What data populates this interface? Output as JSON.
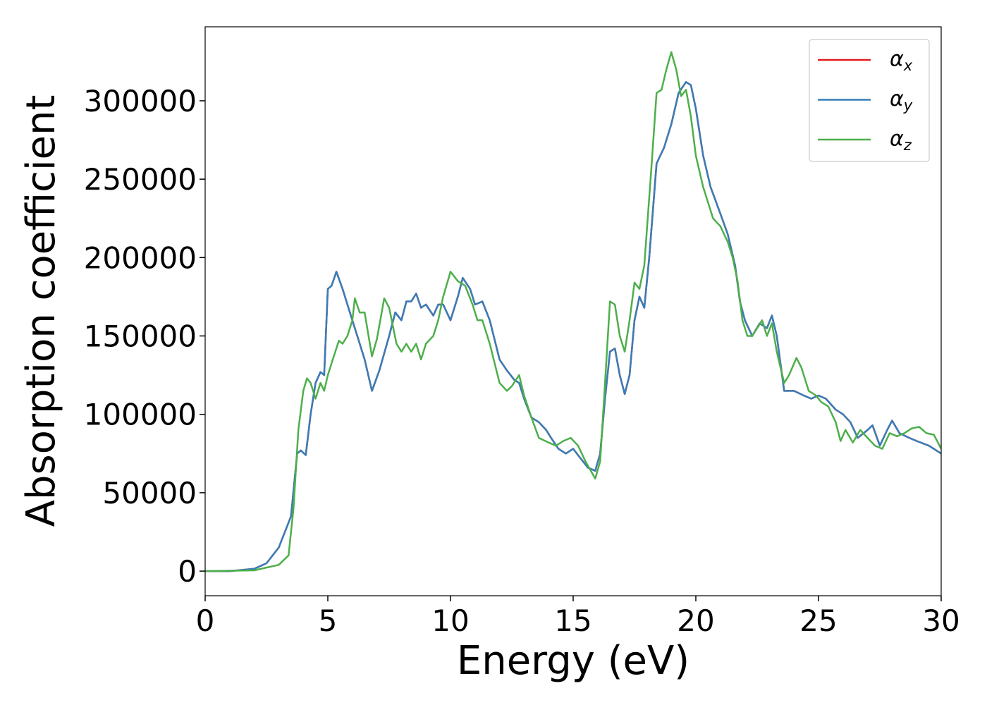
{
  "chart_data": {
    "type": "line",
    "xlabel": "Energy (eV)",
    "ylabel": "Absorption coefficient",
    "xlim": [
      0,
      30
    ],
    "ylim": [
      -15700,
      347200
    ],
    "xticks": [
      0,
      5,
      10,
      15,
      20,
      25,
      30
    ],
    "yticks": [
      0,
      50000,
      100000,
      150000,
      200000,
      250000,
      300000
    ],
    "grid": false,
    "legend": "upper right",
    "series": [
      {
        "name": "αx",
        "color": "#e41a1c",
        "x": [
          0,
          1,
          2,
          2.5,
          3,
          3.5,
          3.75,
          3.9,
          4.1,
          4.3,
          4.5,
          4.7,
          4.85,
          5,
          5.15,
          5.35,
          5.6,
          5.9,
          6.2,
          6.5,
          6.8,
          7.1,
          7.5,
          7.75,
          8,
          8.2,
          8.4,
          8.6,
          8.8,
          9,
          9.3,
          9.5,
          9.7,
          10,
          10.3,
          10.5,
          10.8,
          11,
          11.3,
          11.6,
          12,
          12.3,
          12.6,
          12.8,
          13,
          13.3,
          13.6,
          13.9,
          14.1,
          14.4,
          14.7,
          15,
          15.3,
          15.6,
          15.9,
          16.1,
          16.3,
          16.5,
          16.7,
          16.9,
          17.1,
          17.3,
          17.5,
          17.7,
          17.9,
          18.1,
          18.4,
          18.7,
          19,
          19.3,
          19.6,
          19.8,
          20,
          20.3,
          20.6,
          21,
          21.3,
          21.6,
          21.8,
          22,
          22.3,
          22.6,
          22.9,
          23.1,
          23.3,
          23.6,
          24,
          24.4,
          24.7,
          25,
          25.3,
          25.7,
          26,
          26.3,
          26.6,
          27,
          27.2,
          27.5,
          27.8,
          28,
          28.3,
          28.7,
          29,
          29.5,
          30
        ],
        "values": [
          0,
          0,
          1500,
          5000,
          15000,
          35000,
          75000,
          77000,
          74000,
          100000,
          120000,
          127000,
          125000,
          180000,
          182000,
          191000,
          180000,
          165000,
          150000,
          135000,
          115000,
          128000,
          150000,
          165000,
          160000,
          172000,
          172000,
          177000,
          168000,
          170000,
          163000,
          170000,
          170000,
          160000,
          175000,
          187000,
          180000,
          170000,
          172000,
          160000,
          135000,
          128000,
          122000,
          120000,
          110000,
          98000,
          95000,
          90000,
          85000,
          78000,
          75000,
          78000,
          72000,
          66000,
          64000,
          75000,
          110000,
          140000,
          142000,
          125000,
          113000,
          125000,
          160000,
          175000,
          168000,
          200000,
          260000,
          270000,
          285000,
          305000,
          312000,
          310000,
          295000,
          265000,
          245000,
          228000,
          215000,
          195000,
          172000,
          160000,
          150000,
          158000,
          155000,
          163000,
          150000,
          115000,
          115000,
          112000,
          110000,
          112000,
          110000,
          103000,
          100000,
          95000,
          85000,
          90000,
          93000,
          80000,
          90000,
          96000,
          88000,
          85000,
          83000,
          80000,
          75000
        ]
      },
      {
        "name": "αy",
        "color": "#377eb8",
        "x": [
          0,
          1,
          2,
          2.5,
          3,
          3.5,
          3.75,
          3.9,
          4.1,
          4.3,
          4.5,
          4.7,
          4.85,
          5,
          5.15,
          5.35,
          5.6,
          5.9,
          6.2,
          6.5,
          6.8,
          7.1,
          7.5,
          7.75,
          8,
          8.2,
          8.4,
          8.6,
          8.8,
          9,
          9.3,
          9.5,
          9.7,
          10,
          10.3,
          10.5,
          10.8,
          11,
          11.3,
          11.6,
          12,
          12.3,
          12.6,
          12.8,
          13,
          13.3,
          13.6,
          13.9,
          14.1,
          14.4,
          14.7,
          15,
          15.3,
          15.6,
          15.9,
          16.1,
          16.3,
          16.5,
          16.7,
          16.9,
          17.1,
          17.3,
          17.5,
          17.7,
          17.9,
          18.1,
          18.4,
          18.7,
          19,
          19.3,
          19.6,
          19.8,
          20,
          20.3,
          20.6,
          21,
          21.3,
          21.6,
          21.8,
          22,
          22.3,
          22.6,
          22.9,
          23.1,
          23.3,
          23.6,
          24,
          24.4,
          24.7,
          25,
          25.3,
          25.7,
          26,
          26.3,
          26.6,
          27,
          27.2,
          27.5,
          27.8,
          28,
          28.3,
          28.7,
          29,
          29.5,
          30
        ],
        "values": [
          0,
          0,
          1500,
          5000,
          15000,
          35000,
          75000,
          77000,
          74000,
          100000,
          120000,
          127000,
          125000,
          180000,
          182000,
          191000,
          180000,
          165000,
          150000,
          135000,
          115000,
          128000,
          150000,
          165000,
          160000,
          172000,
          172000,
          177000,
          168000,
          170000,
          163000,
          170000,
          170000,
          160000,
          175000,
          187000,
          180000,
          170000,
          172000,
          160000,
          135000,
          128000,
          122000,
          120000,
          110000,
          98000,
          95000,
          90000,
          85000,
          78000,
          75000,
          78000,
          72000,
          66000,
          64000,
          75000,
          110000,
          140000,
          142000,
          125000,
          113000,
          125000,
          160000,
          175000,
          168000,
          200000,
          260000,
          270000,
          285000,
          305000,
          312000,
          310000,
          295000,
          265000,
          245000,
          228000,
          215000,
          195000,
          172000,
          160000,
          150000,
          158000,
          155000,
          163000,
          150000,
          115000,
          115000,
          112000,
          110000,
          112000,
          110000,
          103000,
          100000,
          95000,
          85000,
          90000,
          93000,
          80000,
          90000,
          96000,
          88000,
          85000,
          83000,
          80000,
          75000
        ]
      },
      {
        "name": "αz",
        "color": "#4daf4a",
        "x": [
          0,
          2,
          3,
          3.4,
          3.6,
          3.8,
          4,
          4.15,
          4.3,
          4.5,
          4.7,
          4.85,
          5,
          5.2,
          5.45,
          5.6,
          5.8,
          6,
          6.1,
          6.3,
          6.5,
          6.8,
          7,
          7.3,
          7.5,
          7.8,
          8,
          8.2,
          8.4,
          8.6,
          8.8,
          9,
          9.3,
          9.5,
          9.7,
          10,
          10.3,
          10.6,
          10.9,
          11.1,
          11.3,
          11.6,
          12,
          12.3,
          12.5,
          12.8,
          13,
          13.3,
          13.6,
          14,
          14.3,
          14.6,
          14.9,
          15.2,
          15.5,
          15.9,
          16.1,
          16.3,
          16.5,
          16.7,
          16.9,
          17.1,
          17.3,
          17.5,
          17.7,
          17.9,
          18.2,
          18.4,
          18.6,
          18.8,
          19,
          19.2,
          19.4,
          19.6,
          19.8,
          20,
          20.3,
          20.7,
          21,
          21.3,
          21.5,
          21.7,
          21.9,
          22.1,
          22.3,
          22.5,
          22.7,
          22.9,
          23.1,
          23.3,
          23.6,
          23.8,
          24.1,
          24.3,
          24.6,
          24.9,
          25.1,
          25.4,
          25.7,
          25.9,
          26.1,
          26.4,
          26.7,
          27,
          27.3,
          27.6,
          27.9,
          28.2,
          28.5,
          28.8,
          29.1,
          29.4,
          29.7,
          30
        ],
        "values": [
          0,
          500,
          4000,
          10000,
          40000,
          90000,
          115000,
          123000,
          120000,
          110000,
          120000,
          115000,
          125000,
          135000,
          147000,
          145000,
          150000,
          160000,
          174000,
          165000,
          165000,
          137000,
          148000,
          174000,
          168000,
          145000,
          140000,
          145000,
          140000,
          145000,
          135000,
          145000,
          150000,
          160000,
          175000,
          191000,
          185000,
          182000,
          170000,
          160000,
          160000,
          145000,
          120000,
          115000,
          118000,
          125000,
          112000,
          98000,
          85000,
          82000,
          80000,
          83000,
          85000,
          80000,
          70000,
          59000,
          70000,
          120000,
          172000,
          170000,
          150000,
          140000,
          160000,
          184000,
          180000,
          195000,
          260000,
          305000,
          307000,
          320000,
          331000,
          320000,
          303000,
          307000,
          290000,
          265000,
          245000,
          225000,
          220000,
          210000,
          200000,
          185000,
          160000,
          150000,
          150000,
          155000,
          160000,
          150000,
          158000,
          140000,
          120000,
          125000,
          136000,
          130000,
          115000,
          112000,
          108000,
          105000,
          95000,
          83000,
          90000,
          82000,
          90000,
          85000,
          80000,
          78000,
          88000,
          86000,
          88000,
          91000,
          92000,
          88000,
          87000,
          78000
        ]
      }
    ]
  }
}
